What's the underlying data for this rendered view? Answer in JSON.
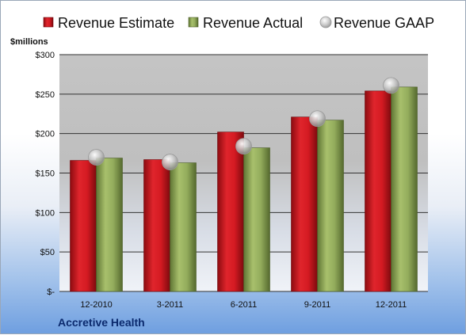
{
  "chart_data": {
    "type": "bar",
    "ylabel": "$millions",
    "ylim": [
      0,
      300
    ],
    "y_ticks": [
      0,
      50,
      100,
      150,
      200,
      250,
      300
    ],
    "y_tick_labels": [
      "$-",
      "$50",
      "$100",
      "$150",
      "$200",
      "$250",
      "$300"
    ],
    "categories": [
      "12-2010",
      "3-2011",
      "6-2011",
      "9-2011",
      "12-2011"
    ],
    "series": [
      {
        "name": "Revenue Estimate",
        "kind": "bar",
        "color": "#c0141c",
        "values": [
          166,
          167,
          202,
          221,
          254
        ]
      },
      {
        "name": "Revenue Actual",
        "kind": "bar",
        "color": "#8fa85a",
        "values": [
          169,
          163,
          182,
          217,
          259
        ]
      },
      {
        "name": "Revenue GAAP",
        "kind": "marker",
        "color": "#b8b8b8",
        "values": [
          170,
          164,
          184,
          219,
          261
        ]
      }
    ],
    "legend_position": "top",
    "grid": true
  },
  "footer": {
    "company": "Accretive Health"
  },
  "colors": {
    "plot_background": "#c8c8c8",
    "gridline": "#333333"
  }
}
